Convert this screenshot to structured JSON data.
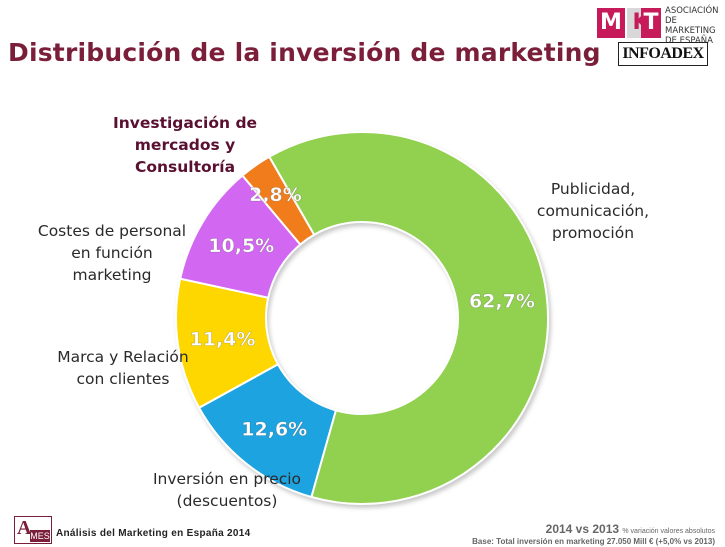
{
  "title": "Distribución de la inversión de marketing",
  "logos": {
    "mkt_letters": [
      "M",
      "K",
      "T"
    ],
    "mkt_text": [
      "ASOCIACIÓN",
      "DE MARKETING",
      "DE ESPAÑA"
    ],
    "infoadex": "INFOADEX",
    "ames_a": "A",
    "ames_es": "MES"
  },
  "chart_data": {
    "type": "pie",
    "style": "donut",
    "slices": [
      {
        "label": "Publicidad, comunicación, promoción",
        "value": 62.7,
        "display": "62,7%",
        "color": "#92d050"
      },
      {
        "label": "Inversión en precio (descuentos)",
        "value": 12.6,
        "display": "12,6%",
        "color": "#1aa3e0"
      },
      {
        "label": "Marca y Relación con clientes",
        "value": 11.4,
        "display": "11,4%",
        "color": "#ffd700"
      },
      {
        "label": "Costes de personal en función marketing",
        "value": 10.5,
        "display": "10,5%",
        "color": "#d268f2"
      },
      {
        "label": "Investigación de mercados y Consultoría",
        "value": 2.8,
        "display": "2,8%",
        "color": "#f07c1c"
      }
    ]
  },
  "labels": {
    "publicidad": [
      "Publicidad,",
      "comunicación,",
      "promoción"
    ],
    "precio": [
      "Inversión en precio",
      "(descuentos)"
    ],
    "marca": [
      "Marca y Relación",
      "con clientes"
    ],
    "personal": [
      "Costes de personal",
      "en función",
      "marketing"
    ],
    "investigacion": [
      "Investigación de",
      "mercados y",
      "Consultoría"
    ]
  },
  "footer": {
    "left": "Análisis del Marketing en España 2014",
    "right_title": "2014 vs 2013",
    "right_note": "% variación valores absolutos",
    "right_base": "Base: Total inversión en marketing 27.050 Mill € (+5,0% vs 2013)"
  }
}
